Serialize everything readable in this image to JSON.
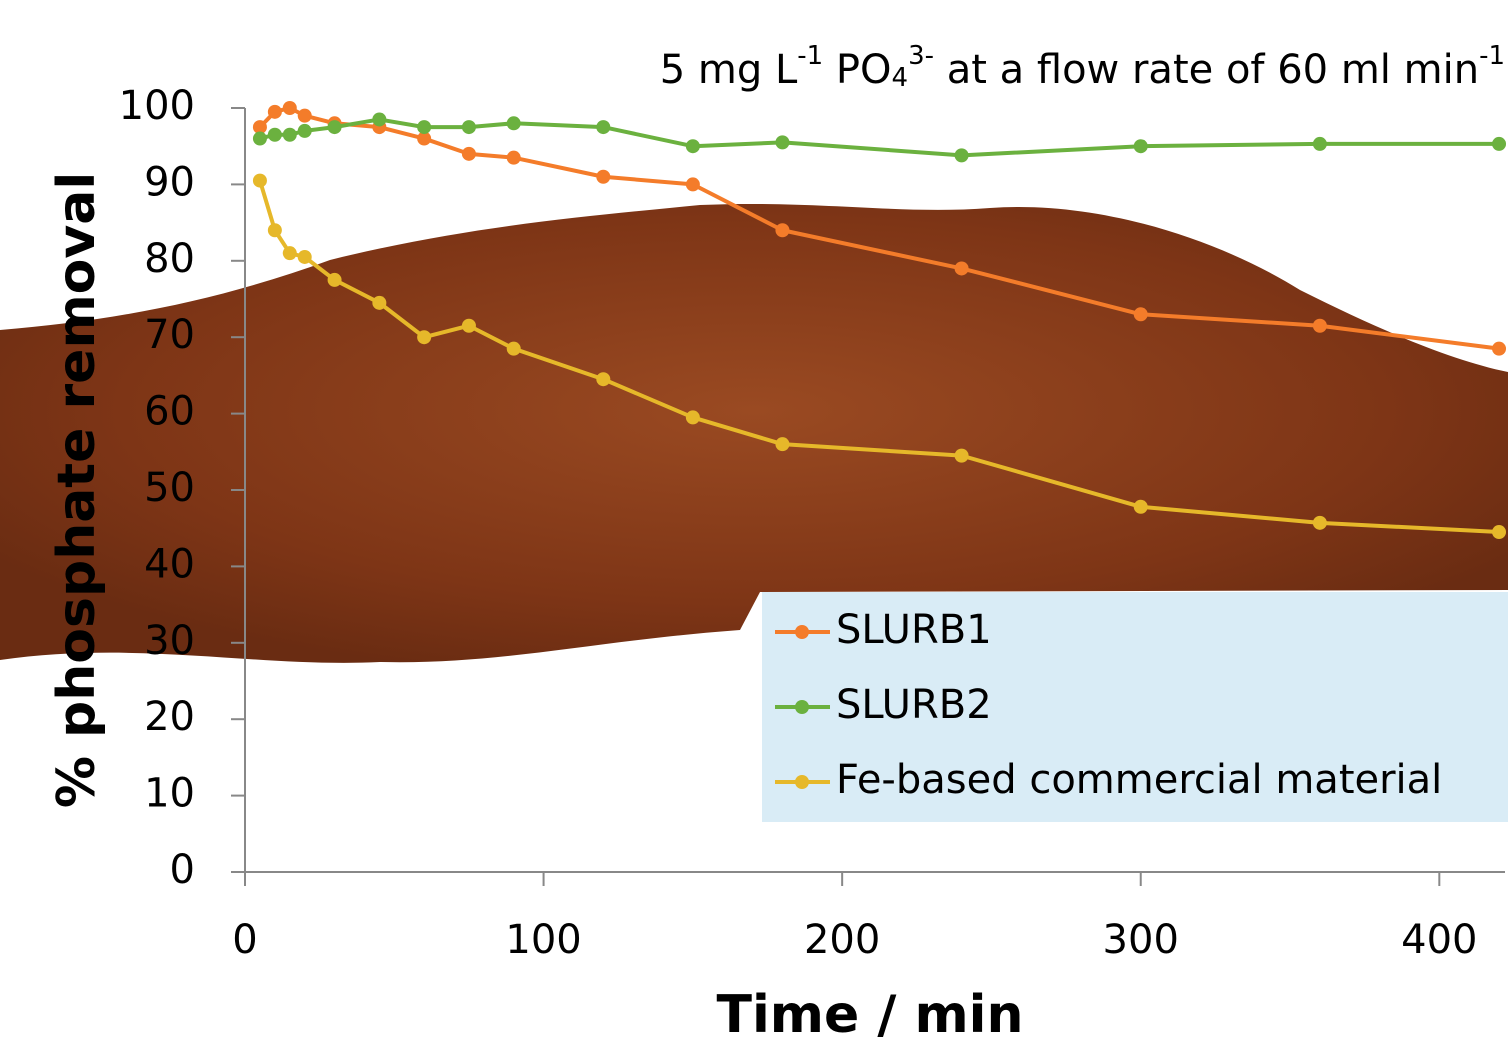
{
  "chart_data": {
    "type": "line",
    "title": [
      "5 mg L",
      "-1",
      " PO",
      "4",
      "3-",
      " at a flow rate of 60 ml min",
      "-1"
    ],
    "x_label": "Time / min",
    "y_label": "% phosphate removal",
    "x": [
      5,
      10,
      15,
      20,
      30,
      45,
      60,
      75,
      90,
      120,
      150,
      180,
      240,
      300,
      360,
      420
    ],
    "series": [
      {
        "name": "SLURB1",
        "color": "#f47c2a",
        "values": [
          97.5,
          99.5,
          100,
          99,
          98,
          97.5,
          96,
          94,
          93.5,
          91,
          90,
          84,
          79,
          73,
          71.5,
          68.5
        ]
      },
      {
        "name": "SLURB2",
        "color": "#6bb13f",
        "values": [
          96,
          96.5,
          96.5,
          97,
          97.5,
          98.5,
          97.5,
          97.5,
          98,
          97.5,
          95,
          95.5,
          93.8,
          95,
          95.3,
          95.3
        ]
      },
      {
        "name": "Fe-based commercial material",
        "color": "#e6b82a",
        "values": [
          90.5,
          84,
          81,
          80.5,
          77.5,
          74.5,
          70,
          71.5,
          68.5,
          64.5,
          59.5,
          56,
          54.5,
          47.8,
          45.7,
          44.5
        ]
      }
    ],
    "xlim": [
      0,
      422
    ],
    "xticks": [
      0,
      100,
      200,
      300,
      400
    ],
    "ylim": [
      0,
      100
    ],
    "yticks": [
      0,
      10,
      20,
      30,
      40,
      50,
      60,
      70,
      80,
      90,
      100
    ]
  }
}
